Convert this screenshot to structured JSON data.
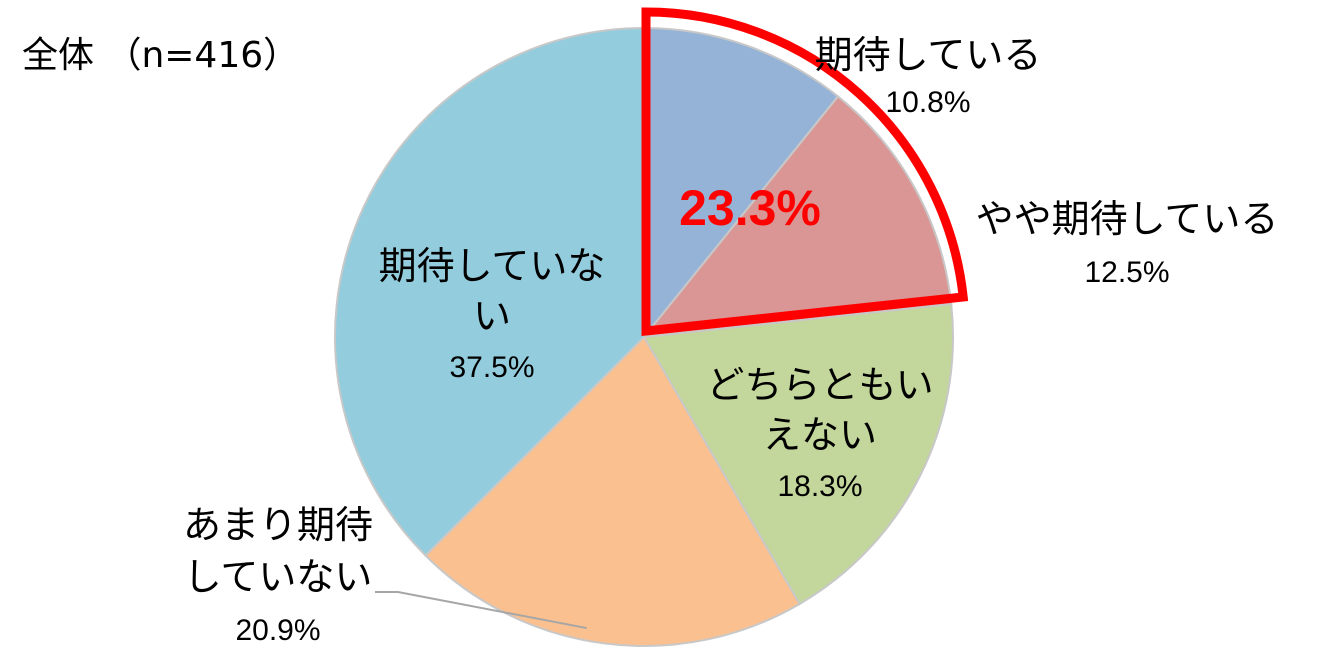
{
  "chart_data": {
    "type": "pie",
    "subtitle": "全体 （n=416）",
    "slices": [
      {
        "label_lines": [
          "期待している"
        ],
        "value": 10.8,
        "value_label": "10.8%",
        "color": "#95B3D7"
      },
      {
        "label_lines": [
          "やや期待している"
        ],
        "value": 12.5,
        "value_label": "12.5%",
        "color": "#D99694"
      },
      {
        "label_lines": [
          "どちらともい",
          "えない"
        ],
        "value": 18.3,
        "value_label": "18.3%",
        "color": "#C3D69B"
      },
      {
        "label_lines": [
          "あまり期待",
          "していない"
        ],
        "value": 20.9,
        "value_label": "20.9%",
        "color": "#FAC090"
      },
      {
        "label_lines": [
          "期待していな",
          "い"
        ],
        "value": 37.5,
        "value_label": "37.5%",
        "color": "#93CDDD"
      }
    ],
    "highlight": {
      "value_label": "23.3%",
      "color": "#FF0000",
      "slices": [
        0,
        1
      ]
    },
    "start_angle_deg": 0,
    "direction": "clockwise",
    "legend": "none"
  }
}
